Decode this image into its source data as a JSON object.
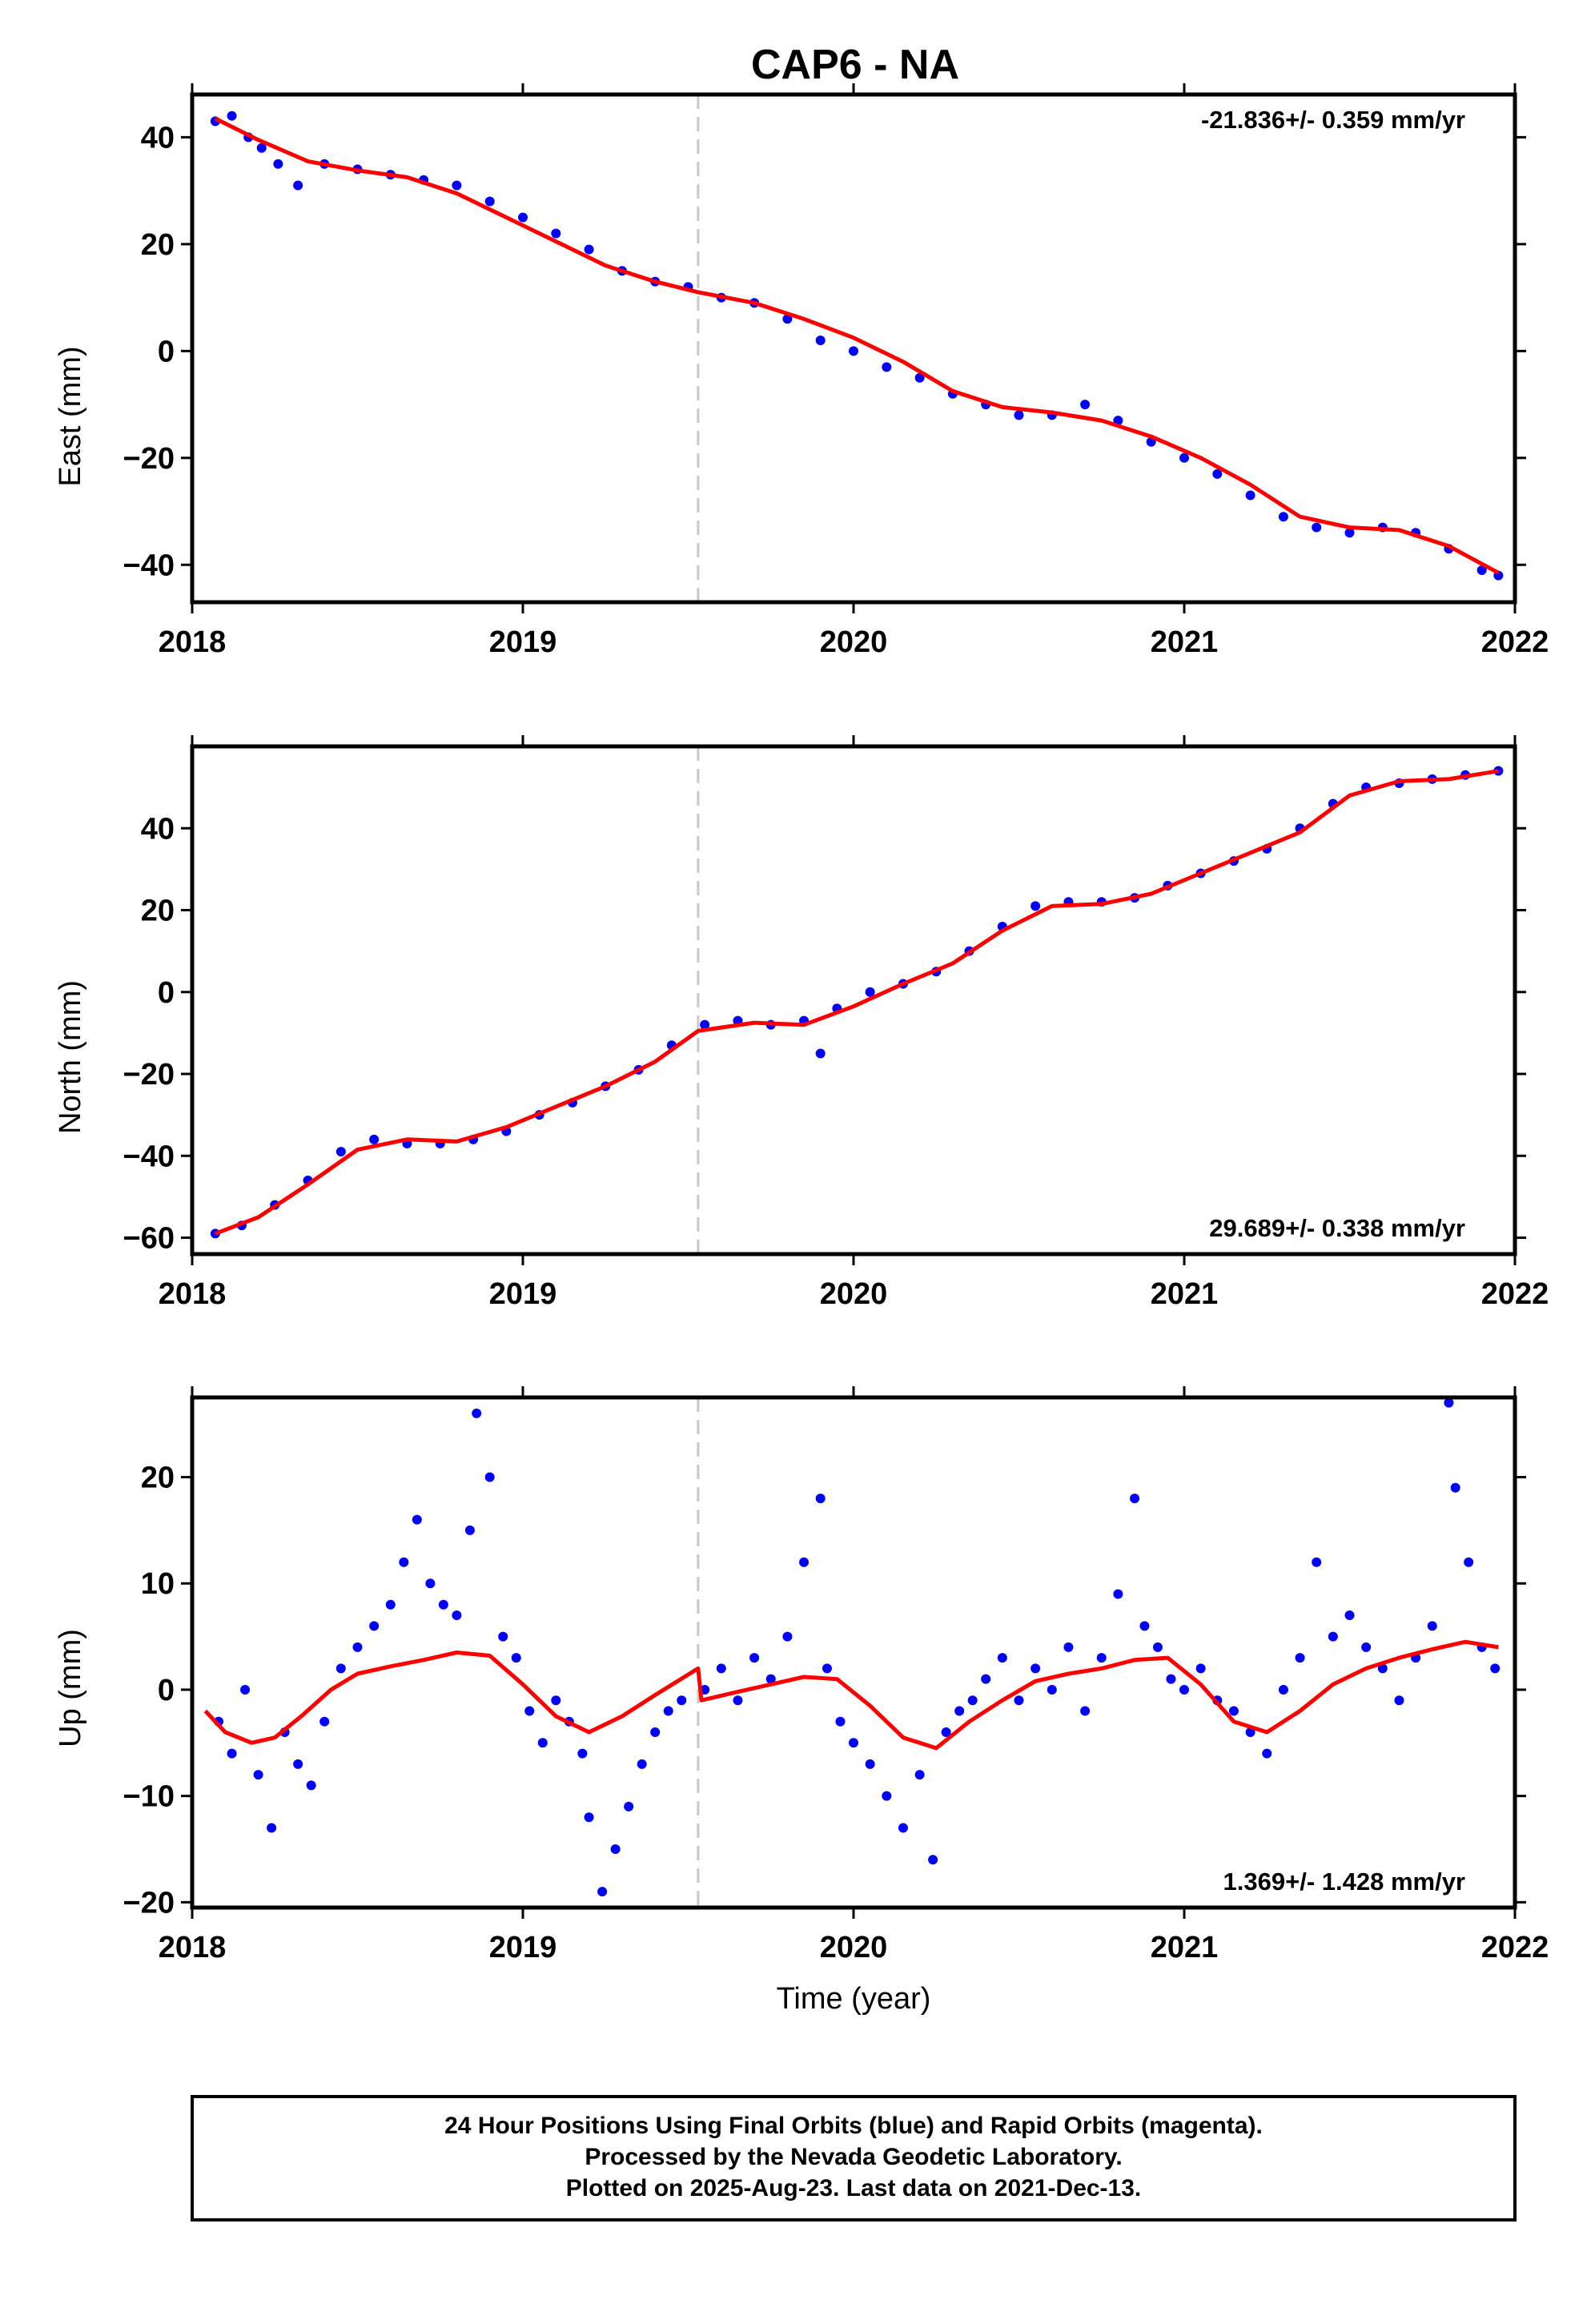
{
  "title": "CAP6 - NA",
  "chart_data": [
    {
      "type": "scatter",
      "panel": "east",
      "ylabel": "East (mm)",
      "ylim": [
        -47,
        48
      ],
      "yticks": [
        40,
        20,
        0,
        -20,
        -40
      ],
      "xlim": [
        2018,
        2022
      ],
      "xticks": [
        2018,
        2019,
        2020,
        2021,
        2022
      ],
      "event_line_x": 2019.53,
      "rate_text": "-21.836+/- 0.359 mm/yr",
      "rate_position": "top-right",
      "series": [
        {
          "role": "observations",
          "color": "#0000ff",
          "x": [
            2018.07,
            2018.12,
            2018.17,
            2018.21,
            2018.26,
            2018.32,
            2018.4,
            2018.5,
            2018.6,
            2018.7,
            2018.8,
            2018.9,
            2019.0,
            2019.1,
            2019.2,
            2019.3,
            2019.4,
            2019.5,
            2019.6,
            2019.7,
            2019.8,
            2019.9,
            2020.0,
            2020.1,
            2020.2,
            2020.3,
            2020.4,
            2020.5,
            2020.6,
            2020.7,
            2020.8,
            2020.9,
            2021.0,
            2021.1,
            2021.2,
            2021.3,
            2021.4,
            2021.5,
            2021.6,
            2021.7,
            2021.8,
            2021.9,
            2021.95
          ],
          "y": [
            43,
            44,
            40,
            38,
            35,
            31,
            35,
            34,
            33,
            32,
            31,
            28,
            25,
            22,
            19,
            15,
            13,
            12,
            10,
            9,
            6,
            2,
            0,
            -3,
            -5,
            -8,
            -10,
            -12,
            -12,
            -10,
            -13,
            -17,
            -20,
            -23,
            -27,
            -31,
            -33,
            -34,
            -33,
            -34,
            -37,
            -41,
            -42
          ]
        },
        {
          "role": "model",
          "color": "#ff0000",
          "x": [
            2018.07,
            2018.2,
            2018.35,
            2018.5,
            2018.65,
            2018.8,
            2018.95,
            2019.1,
            2019.25,
            2019.4,
            2019.53,
            2019.7,
            2019.85,
            2020.0,
            2020.15,
            2020.3,
            2020.45,
            2020.6,
            2020.75,
            2020.9,
            2021.05,
            2021.2,
            2021.35,
            2021.5,
            2021.65,
            2021.8,
            2021.95
          ],
          "y": [
            43.5,
            39.5,
            35.5,
            33.8,
            32.5,
            29.5,
            25,
            20.5,
            16,
            13,
            11,
            9,
            6,
            2.5,
            -2,
            -7.5,
            -10.5,
            -11.5,
            -13,
            -16,
            -20,
            -25,
            -31,
            -33,
            -33.5,
            -36.5,
            -41.5
          ]
        }
      ]
    },
    {
      "type": "scatter",
      "panel": "north",
      "ylabel": "North (mm)",
      "ylim": [
        -64,
        60
      ],
      "yticks": [
        40,
        20,
        0,
        -20,
        -40,
        -60
      ],
      "xlim": [
        2018,
        2022
      ],
      "xticks": [
        2018,
        2019,
        2020,
        2021,
        2022
      ],
      "event_line_x": 2019.53,
      "rate_text": "29.689+/- 0.338 mm/yr",
      "rate_position": "bottom-right",
      "series": [
        {
          "role": "observations",
          "color": "#0000ff",
          "x": [
            2018.07,
            2018.15,
            2018.25,
            2018.35,
            2018.45,
            2018.55,
            2018.65,
            2018.75,
            2018.85,
            2018.95,
            2019.05,
            2019.15,
            2019.25,
            2019.35,
            2019.45,
            2019.55,
            2019.65,
            2019.75,
            2019.85,
            2019.9,
            2019.95,
            2020.05,
            2020.15,
            2020.25,
            2020.35,
            2020.45,
            2020.55,
            2020.65,
            2020.75,
            2020.85,
            2020.95,
            2021.05,
            2021.15,
            2021.25,
            2021.35,
            2021.45,
            2021.55,
            2021.65,
            2021.75,
            2021.85,
            2021.95
          ],
          "y": [
            -59,
            -57,
            -52,
            -46,
            -39,
            -36,
            -37,
            -37,
            -36,
            -34,
            -30,
            -27,
            -23,
            -19,
            -13,
            -8,
            -7,
            -8,
            -7,
            -15,
            -4,
            0,
            2,
            5,
            10,
            16,
            21,
            22,
            22,
            23,
            26,
            29,
            32,
            35,
            40,
            46,
            50,
            51,
            52,
            53,
            54
          ]
        },
        {
          "role": "model",
          "color": "#ff0000",
          "x": [
            2018.07,
            2018.2,
            2018.35,
            2018.5,
            2018.65,
            2018.8,
            2018.95,
            2019.1,
            2019.25,
            2019.4,
            2019.53,
            2019.7,
            2019.85,
            2020.0,
            2020.15,
            2020.3,
            2020.45,
            2020.6,
            2020.75,
            2020.9,
            2021.05,
            2021.2,
            2021.35,
            2021.5,
            2021.65,
            2021.8,
            2021.95
          ],
          "y": [
            -59,
            -55,
            -47,
            -38.5,
            -36,
            -36.5,
            -33,
            -28,
            -23,
            -17,
            -9.5,
            -7.5,
            -8,
            -3.5,
            2,
            7,
            15,
            21,
            21.5,
            24,
            29,
            34,
            39,
            48,
            51.5,
            52,
            54
          ]
        }
      ]
    },
    {
      "type": "scatter",
      "panel": "up",
      "ylabel": "Up (mm)",
      "xlabel": "Time (year)",
      "ylim": [
        -20.5,
        27.5
      ],
      "yticks": [
        20,
        10,
        0,
        -10,
        -20
      ],
      "xlim": [
        2018,
        2022
      ],
      "xticks": [
        2018,
        2019,
        2020,
        2021,
        2022
      ],
      "event_line_x": 2019.53,
      "rate_text": "1.369+/- 1.428 mm/yr",
      "rate_position": "bottom-right",
      "series": [
        {
          "role": "observations",
          "color": "#0000ff",
          "x": [
            2018.08,
            2018.12,
            2018.16,
            2018.2,
            2018.24,
            2018.28,
            2018.32,
            2018.36,
            2018.4,
            2018.45,
            2018.5,
            2018.55,
            2018.6,
            2018.64,
            2018.68,
            2018.72,
            2018.76,
            2018.8,
            2018.84,
            2018.86,
            2018.9,
            2018.94,
            2018.98,
            2019.02,
            2019.06,
            2019.1,
            2019.14,
            2019.18,
            2019.2,
            2019.24,
            2019.28,
            2019.32,
            2019.36,
            2019.4,
            2019.44,
            2019.48,
            2019.55,
            2019.6,
            2019.65,
            2019.7,
            2019.75,
            2019.8,
            2019.85,
            2019.9,
            2019.92,
            2019.96,
            2020.0,
            2020.05,
            2020.1,
            2020.15,
            2020.2,
            2020.24,
            2020.28,
            2020.32,
            2020.36,
            2020.4,
            2020.45,
            2020.5,
            2020.55,
            2020.6,
            2020.65,
            2020.7,
            2020.75,
            2020.8,
            2020.85,
            2020.88,
            2020.92,
            2020.96,
            2021.0,
            2021.05,
            2021.1,
            2021.15,
            2021.2,
            2021.25,
            2021.3,
            2021.35,
            2021.4,
            2021.45,
            2021.5,
            2021.55,
            2021.6,
            2021.65,
            2021.7,
            2021.75,
            2021.8,
            2021.82,
            2021.86,
            2021.9,
            2021.94
          ],
          "y": [
            -3,
            -6,
            0,
            -8,
            -13,
            -4,
            -7,
            -9,
            -3,
            2,
            4,
            6,
            8,
            12,
            16,
            10,
            8,
            7,
            15,
            26,
            20,
            5,
            3,
            -2,
            -5,
            -1,
            -3,
            -6,
            -12,
            -19,
            -15,
            -11,
            -7,
            -4,
            -2,
            -1,
            0,
            2,
            -1,
            3,
            1,
            5,
            12,
            18,
            2,
            -3,
            -5,
            -7,
            -10,
            -13,
            -8,
            -16,
            -4,
            -2,
            -1,
            1,
            3,
            -1,
            2,
            0,
            4,
            -2,
            3,
            9,
            18,
            6,
            4,
            1,
            0,
            2,
            -1,
            -2,
            -4,
            -6,
            0,
            3,
            12,
            5,
            7,
            4,
            2,
            -1,
            3,
            6,
            27,
            19,
            12,
            4,
            2
          ]
        },
        {
          "role": "model",
          "color": "#ff0000",
          "x": [
            2018.04,
            2018.1,
            2018.18,
            2018.25,
            2018.33,
            2018.42,
            2018.5,
            2018.6,
            2018.7,
            2018.8,
            2018.9,
            2019.0,
            2019.1,
            2019.2,
            2019.3,
            2019.4,
            2019.53,
            2019.54,
            2019.65,
            2019.75,
            2019.85,
            2019.95,
            2020.05,
            2020.15,
            2020.25,
            2020.35,
            2020.45,
            2020.55,
            2020.65,
            2020.75,
            2020.85,
            2020.95,
            2021.05,
            2021.15,
            2021.25,
            2021.35,
            2021.45,
            2021.55,
            2021.65,
            2021.75,
            2021.85,
            2021.95
          ],
          "y": [
            -2,
            -4,
            -5,
            -4.5,
            -2.5,
            0,
            1.5,
            2.2,
            2.8,
            3.5,
            3.2,
            0.5,
            -2.5,
            -4,
            -2.5,
            -0.5,
            2,
            -1,
            -0.2,
            0.5,
            1.2,
            1,
            -1.5,
            -4.5,
            -5.5,
            -3,
            -1,
            0.8,
            1.5,
            2,
            2.8,
            3,
            0.5,
            -3,
            -4,
            -2,
            0.5,
            2,
            3,
            3.8,
            4.5,
            4
          ]
        }
      ]
    }
  ],
  "caption": {
    "line1": "24 Hour Positions Using Final Orbits (blue) and Rapid Orbits (magenta).",
    "line2": "Processed by the Nevada Geodetic Laboratory.",
    "line3": "Plotted on 2025-Aug-23. Last data on 2021-Dec-13."
  }
}
